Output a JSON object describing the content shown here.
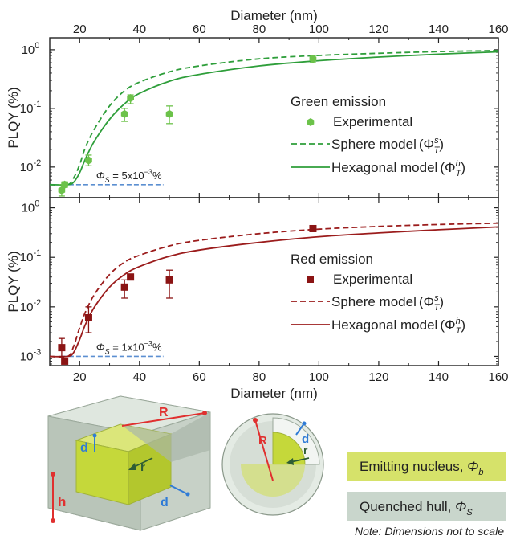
{
  "chart_data": [
    {
      "type": "scatter",
      "panel": "green",
      "xlabel": "Diameter (nm)",
      "ylabel": "PLQY (%)",
      "xlim": [
        10,
        160
      ],
      "ylim": [
        0.003,
        1.6
      ],
      "yscale": "log",
      "x_ticks": [
        "20",
        "40",
        "60",
        "80",
        "100",
        "120",
        "140",
        "160"
      ],
      "y_ticks": [
        {
          "value": 1,
          "base": "10",
          "exp": "0"
        },
        {
          "value": 0.1,
          "base": "10",
          "exp": "-1"
        },
        {
          "value": 0.01,
          "base": "10",
          "exp": "-2"
        }
      ],
      "legend_title": "Green emission",
      "legend_position": "right",
      "color": "#2e9e3a",
      "marker_color": "#6cc24a",
      "floor_value": 0.005,
      "floor_label": "Φ",
      "floor_sub": "S",
      "floor_eq": " = 5x10",
      "floor_exp": "−3",
      "floor_unit": "%",
      "series": [
        {
          "name": "Experimental",
          "style": "hexagon-marker",
          "x": [
            14,
            15,
            23,
            35,
            37,
            50,
            98
          ],
          "y": [
            0.004,
            0.005,
            0.013,
            0.08,
            0.15,
            0.08,
            0.7
          ],
          "err_low": [
            0.0032,
            0.0045,
            0.0105,
            0.06,
            0.12,
            0.055,
            0.6
          ],
          "err_high": [
            0.005,
            0.0056,
            0.016,
            0.1,
            0.17,
            0.11,
            0.8
          ]
        },
        {
          "name": "Sphere model",
          "style": "dashed",
          "model_sym": "Φ",
          "model_sub": "T",
          "model_sup": "s",
          "x": [
            10,
            16,
            18,
            20,
            22,
            25,
            30,
            35,
            40,
            50,
            60,
            80,
            100,
            120,
            140,
            160
          ],
          "y": [
            0.005,
            0.005,
            0.0065,
            0.011,
            0.022,
            0.045,
            0.11,
            0.2,
            0.28,
            0.42,
            0.53,
            0.7,
            0.8,
            0.87,
            0.93,
            0.97
          ]
        },
        {
          "name": "Hexagonal model",
          "style": "solid",
          "model_sym": "Φ",
          "model_sub": "T",
          "model_sup": "h",
          "x": [
            10,
            16,
            18,
            20,
            22,
            25,
            30,
            35,
            40,
            50,
            60,
            80,
            100,
            120,
            140,
            160
          ],
          "y": [
            0.005,
            0.005,
            0.0055,
            0.008,
            0.014,
            0.028,
            0.065,
            0.12,
            0.18,
            0.29,
            0.38,
            0.53,
            0.65,
            0.75,
            0.84,
            0.92
          ]
        }
      ]
    },
    {
      "type": "scatter",
      "panel": "red",
      "xlabel": "Diameter (nm)",
      "ylabel": "PLQY (%)",
      "xlim": [
        10,
        160
      ],
      "ylim": [
        0.00065,
        1.6
      ],
      "yscale": "log",
      "x_ticks": [
        "20",
        "40",
        "60",
        "80",
        "100",
        "120",
        "140",
        "160"
      ],
      "y_ticks": [
        {
          "value": 1,
          "base": "10",
          "exp": "0"
        },
        {
          "value": 0.1,
          "base": "10",
          "exp": "-1"
        },
        {
          "value": 0.01,
          "base": "10",
          "exp": "-2"
        },
        {
          "value": 0.001,
          "base": "10",
          "exp": "-3"
        }
      ],
      "legend_title": "Red emission",
      "legend_position": "right",
      "color": "#9b1c1c",
      "marker_color": "#8b1414",
      "floor_value": 0.001,
      "floor_label": "Φ",
      "floor_sub": "S",
      "floor_eq": " = 1x10",
      "floor_exp": "−3",
      "floor_unit": "%",
      "series": [
        {
          "name": "Experimental",
          "style": "square-marker",
          "x": [
            14,
            15,
            23,
            35,
            37,
            50,
            98
          ],
          "y": [
            0.0015,
            0.0008,
            0.006,
            0.025,
            0.04,
            0.035,
            0.38
          ],
          "err_low": [
            0.001,
            0.00075,
            0.003,
            0.015,
            0.038,
            0.015,
            0.34
          ],
          "err_high": [
            0.0023,
            0.00085,
            0.01,
            0.035,
            0.042,
            0.055,
            0.42
          ]
        },
        {
          "name": "Sphere model",
          "style": "dashed",
          "model_sym": "Φ",
          "model_sub": "T",
          "model_sup": "s",
          "x": [
            10,
            16,
            18,
            20,
            22,
            25,
            30,
            35,
            40,
            50,
            60,
            80,
            100,
            120,
            140,
            160
          ],
          "y": [
            0.001,
            0.001,
            0.0016,
            0.0038,
            0.008,
            0.018,
            0.045,
            0.08,
            0.11,
            0.17,
            0.22,
            0.3,
            0.37,
            0.42,
            0.46,
            0.49
          ]
        },
        {
          "name": "Hexagonal model",
          "style": "solid",
          "model_sym": "Φ",
          "model_sub": "T",
          "model_sup": "h",
          "x": [
            10,
            16,
            18,
            20,
            22,
            25,
            30,
            35,
            40,
            50,
            60,
            80,
            100,
            120,
            140,
            160
          ],
          "y": [
            0.001,
            0.001,
            0.0012,
            0.0022,
            0.0045,
            0.01,
            0.025,
            0.045,
            0.065,
            0.105,
            0.14,
            0.2,
            0.26,
            0.31,
            0.36,
            0.41
          ]
        }
      ]
    }
  ],
  "illustration": {
    "labels": {
      "R": "R",
      "d": "d",
      "r": "r",
      "h": "h"
    },
    "legend": [
      {
        "text": "Emitting nucleus, ",
        "sym": "Φ",
        "sub": "b",
        "color": "#d6e26a"
      },
      {
        "text": "Quenched hull, ",
        "sym": "Φ",
        "sub": "S",
        "color": "#c9d6cc"
      }
    ],
    "note": "Note: Dimensions not to scale",
    "colors": {
      "core": "#c5d83a",
      "hull": "#cfd8cf",
      "red": "#e0302f",
      "blue": "#2f7bd6",
      "arrow": "#2e5d35"
    }
  }
}
